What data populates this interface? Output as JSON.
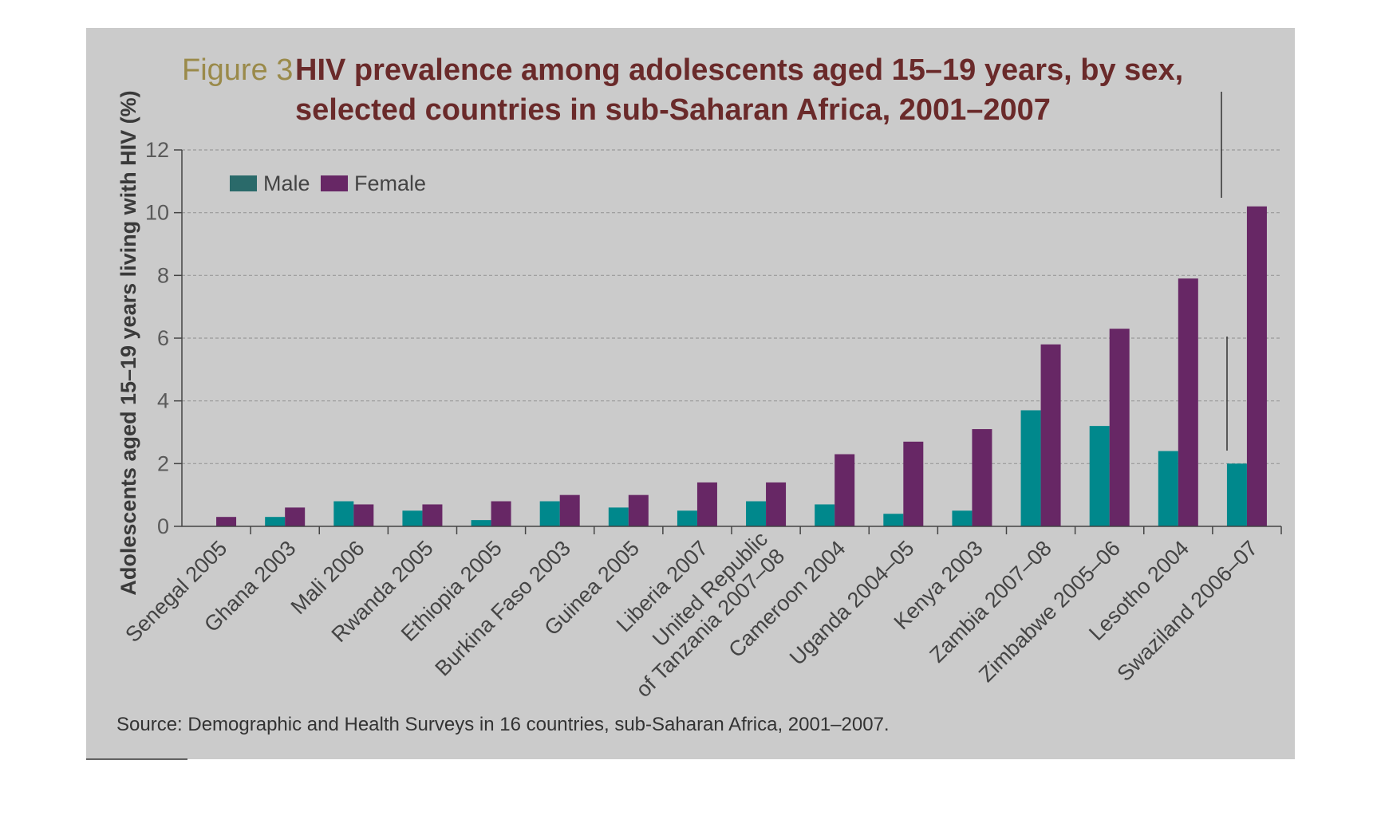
{
  "figure_label": "Figure 3",
  "title_line1": "HIV prevalence among adolescents aged 15–19 years, by sex,",
  "title_line2": "selected countries in sub-Saharan Africa, 2001–2007",
  "source_note": "Source: Demographic and Health Surveys in 16 countries, sub-Saharan Africa, 2001–2007.",
  "colors": {
    "panel_bg": "#cbcbcb",
    "male": "#00888c",
    "female": "#672765",
    "legend_male": "#2a6a6a",
    "grid": "#9a9a9a",
    "axis": "#444444"
  },
  "chart_data": {
    "type": "bar",
    "title": "HIV prevalence among adolescents aged 15–19 years, by sex, selected countries in sub-Saharan Africa, 2001–2007",
    "xlabel": "",
    "ylabel": "Adolescents aged 15–19 years living with HIV (%)",
    "ylim": [
      0,
      12
    ],
    "yticks": [
      "0",
      "2",
      "4",
      "6",
      "8",
      "10",
      "12"
    ],
    "grid": true,
    "legend_position": "top-left",
    "categories": [
      "Senegal 2005",
      "Ghana 2003",
      "Mali 2006",
      "Rwanda 2005",
      "Ethiopia 2005",
      "Burkina Faso 2003",
      "Guinea 2005",
      "Liberia 2007",
      "United Republic\nof Tanzania 2007–08",
      "Cameroon 2004",
      "Uganda 2004–05",
      "Kenya 2003",
      "Zambia 2007–08",
      "Zimbabwe 2005–06",
      "Lesotho 2004",
      "Swaziland 2006–07"
    ],
    "series": [
      {
        "name": "Male",
        "values": [
          0.0,
          0.3,
          0.8,
          0.5,
          0.2,
          0.8,
          0.6,
          0.5,
          0.8,
          0.7,
          0.4,
          0.5,
          3.7,
          3.2,
          2.4,
          2.0
        ]
      },
      {
        "name": "Female",
        "values": [
          0.3,
          0.6,
          0.7,
          0.7,
          0.8,
          1.0,
          1.0,
          1.4,
          1.4,
          2.3,
          2.7,
          3.1,
          5.8,
          6.3,
          7.9,
          10.2
        ]
      }
    ]
  }
}
